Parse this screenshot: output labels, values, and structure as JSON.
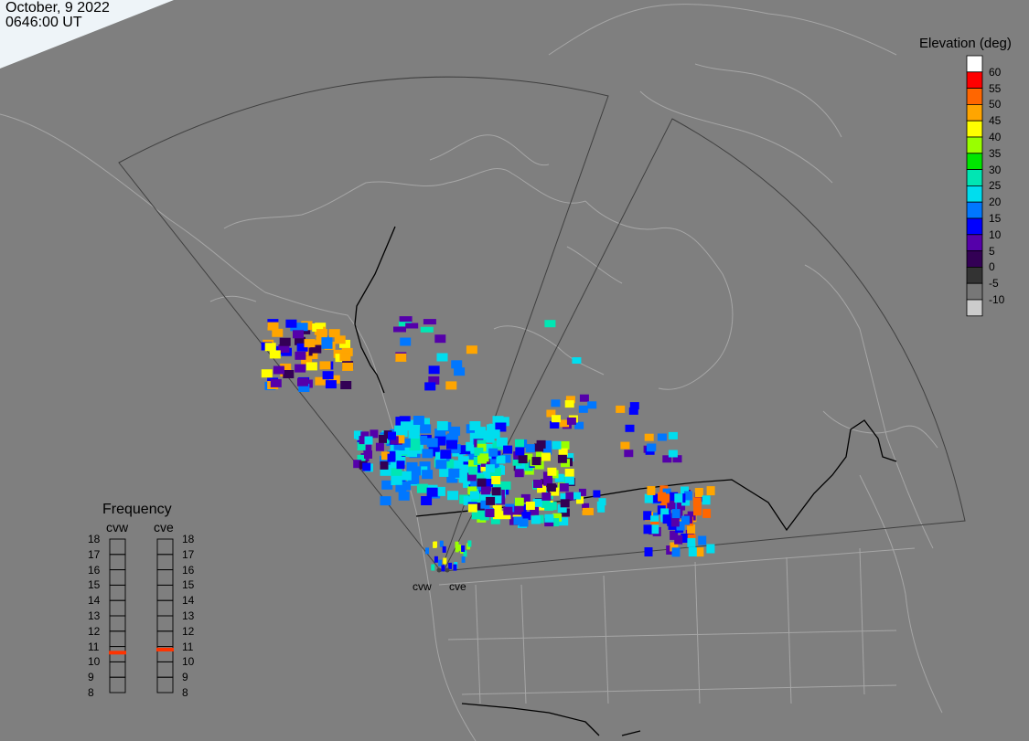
{
  "header": {
    "date": "October, 9 2022",
    "time": "0646:00 UT"
  },
  "elevation_legend": {
    "title": "Elevation (deg)",
    "bins": [
      {
        "label": "60",
        "color": "#ffffff"
      },
      {
        "label": "55",
        "color": "#ff0000"
      },
      {
        "label": "50",
        "color": "#ff6600"
      },
      {
        "label": "45",
        "color": "#ffa500"
      },
      {
        "label": "40",
        "color": "#ffff00"
      },
      {
        "label": "35",
        "color": "#99ff00"
      },
      {
        "label": "30",
        "color": "#00e600"
      },
      {
        "label": "25",
        "color": "#00e6b3"
      },
      {
        "label": "20",
        "color": "#00ddee"
      },
      {
        "label": "15",
        "color": "#0077ff"
      },
      {
        "label": "10",
        "color": "#0000ff"
      },
      {
        "label": "5",
        "color": "#5500aa"
      },
      {
        "label": "0",
        "color": "#330055"
      },
      {
        "label": "-5",
        "color": "#333333"
      },
      {
        "label": "-10",
        "color": "#777777"
      },
      {
        "label": "",
        "color": "#cccccc"
      }
    ]
  },
  "frequency_legend": {
    "title": "Frequency",
    "radars": [
      {
        "name": "cvw",
        "current_mhz": 10.6
      },
      {
        "name": "cve",
        "current_mhz": 10.8
      }
    ],
    "ticks": [
      "18",
      "17",
      "16",
      "15",
      "14",
      "13",
      "12",
      "11",
      "10",
      "9",
      "8"
    ],
    "indicator_color": "#ff3300"
  },
  "radar_sites": [
    {
      "name": "cvw"
    },
    {
      "name": "cve"
    }
  ],
  "map_colors": {
    "background": "#7f7f7f",
    "coastline": "#a6a6a6",
    "border": "#000000",
    "fov": "#404040"
  }
}
